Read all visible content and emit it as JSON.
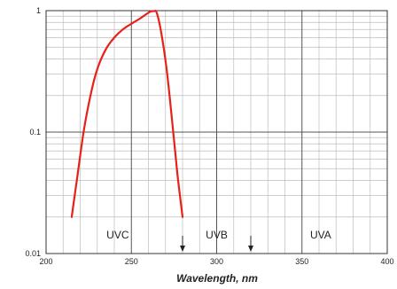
{
  "chart_data": {
    "type": "line",
    "title": "",
    "xlabel": "Wavelength, nm",
    "ylabel": "",
    "x_scale": "linear",
    "y_scale": "log",
    "xlim": [
      200,
      400
    ],
    "ylim": [
      0.01,
      1
    ],
    "grid": true,
    "x_ticks": [
      200,
      250,
      300,
      350,
      400
    ],
    "x_tick_labels": [
      "200",
      "250",
      "300",
      "350",
      "400"
    ],
    "y_ticks": [
      0.01,
      0.1,
      1
    ],
    "y_tick_labels": [
      "0.01",
      "0.1",
      "1"
    ],
    "series": [
      {
        "color": "#e8201a",
        "x": [
          215,
          218,
          222,
          226,
          230,
          235,
          240,
          245,
          250,
          255,
          258,
          261,
          263,
          265,
          268,
          271,
          274,
          277,
          280
        ],
        "y": [
          0.02,
          0.04,
          0.1,
          0.2,
          0.33,
          0.48,
          0.6,
          0.7,
          0.78,
          0.86,
          0.92,
          0.98,
          0.99,
          0.95,
          0.6,
          0.3,
          0.12,
          0.045,
          0.02
        ]
      }
    ],
    "annotations": {
      "bands": [
        {
          "label": "UVC",
          "x": 242
        },
        {
          "label": "UVB",
          "x": 300
        },
        {
          "label": "UVA",
          "x": 361
        }
      ],
      "arrows": [
        280,
        320
      ]
    }
  }
}
